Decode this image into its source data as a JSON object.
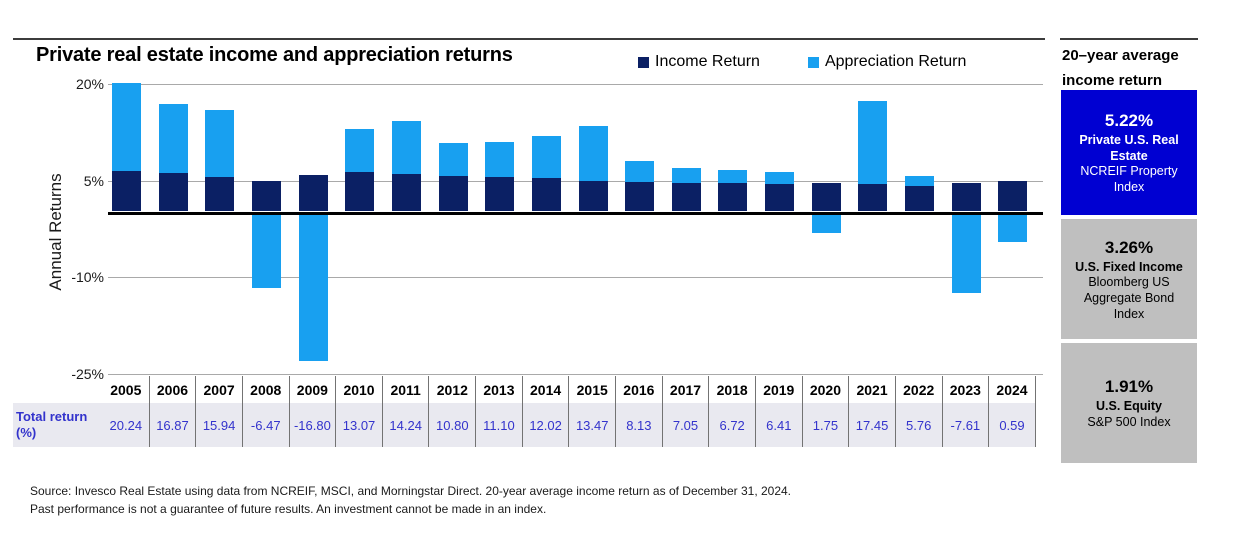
{
  "title": "Private real estate income and appreciation returns",
  "ylabel": "Annual Returns",
  "legend": {
    "income_label": "Income Return",
    "appreciation_label": "Appreciation Return"
  },
  "colors": {
    "income": "#0b2064",
    "appreciation": "#18a0f0",
    "table_text": "#3333cc",
    "sidebar_blue": "#0000d2",
    "sidebar_gray": "#bfbfbf"
  },
  "chart_data": {
    "type": "bar",
    "stacked": true,
    "title": "Private real estate income and appreciation returns",
    "ylabel": "Annual Returns",
    "legend_position": "top-right",
    "grid": "horizontal",
    "ylim": [
      -25,
      22
    ],
    "yticks": [
      {
        "value": 20,
        "label": "20%"
      },
      {
        "value": 5,
        "label": "5%"
      },
      {
        "value": -10,
        "label": "-10%"
      },
      {
        "value": -25,
        "label": "-25%"
      }
    ],
    "categories": [
      "2005",
      "2006",
      "2007",
      "2008",
      "2009",
      "2010",
      "2011",
      "2012",
      "2013",
      "2014",
      "2015",
      "2016",
      "2017",
      "2018",
      "2019",
      "2020",
      "2021",
      "2022",
      "2023",
      "2024"
    ],
    "series": [
      {
        "name": "Income Return",
        "values": [
          6.5,
          6.2,
          5.6,
          5.0,
          5.9,
          6.4,
          6.1,
          5.7,
          5.6,
          5.4,
          5.0,
          4.8,
          4.7,
          4.6,
          4.5,
          4.6,
          4.5,
          4.2,
          4.6,
          4.9
        ]
      },
      {
        "name": "Appreciation Return",
        "values": [
          13.74,
          10.67,
          10.34,
          -11.47,
          -22.7,
          6.67,
          8.14,
          5.1,
          5.5,
          6.62,
          8.47,
          3.33,
          2.35,
          2.12,
          1.91,
          -2.85,
          12.95,
          1.56,
          -12.21,
          -4.31
        ]
      }
    ],
    "totals": [
      20.24,
      16.87,
      15.94,
      -6.47,
      -16.8,
      13.07,
      14.24,
      10.8,
      11.1,
      12.02,
      13.47,
      8.13,
      7.05,
      6.72,
      6.41,
      1.75,
      17.45,
      5.76,
      -7.61,
      0.59
    ]
  },
  "table": {
    "row_label": "Total return (%)",
    "years": [
      "2005",
      "2006",
      "2007",
      "2008",
      "2009",
      "2010",
      "2011",
      "2012",
      "2013",
      "2014",
      "2015",
      "2016",
      "2017",
      "2018",
      "2019",
      "2020",
      "2021",
      "2022",
      "2023",
      "2024"
    ],
    "values": [
      "20.24",
      "16.87",
      "15.94",
      "-6.47",
      "-16.80",
      "13.07",
      "14.24",
      "10.80",
      "11.10",
      "12.02",
      "13.47",
      "8.13",
      "7.05",
      "6.72",
      "6.41",
      "1.75",
      "17.45",
      "5.76",
      "-7.61",
      "0.59"
    ]
  },
  "sidebar": {
    "title_line1": "20–year average",
    "title_line2": "income return",
    "boxes": [
      {
        "value": "5.22%",
        "name": "Private U.S. Real Estate",
        "index": "NCREIF Property Index",
        "bg": "#0000d2",
        "fg": "#ffffff"
      },
      {
        "value": "3.26%",
        "name": "U.S. Fixed Income",
        "index": "Bloomberg US Aggregate Bond Index",
        "bg": "#bfbfbf",
        "fg": "#000000"
      },
      {
        "value": "1.91%",
        "name": "U.S. Equity",
        "index": "S&P 500 Index",
        "bg": "#bfbfbf",
        "fg": "#000000"
      }
    ]
  },
  "footer": {
    "source": "Source: Invesco Real Estate using data from NCREIF, MSCI, and Morningstar Direct. 20-year average income return as of December 31, 2024.",
    "disclaimer": "Past performance is not a guarantee of future results. An investment cannot be made in an index."
  }
}
